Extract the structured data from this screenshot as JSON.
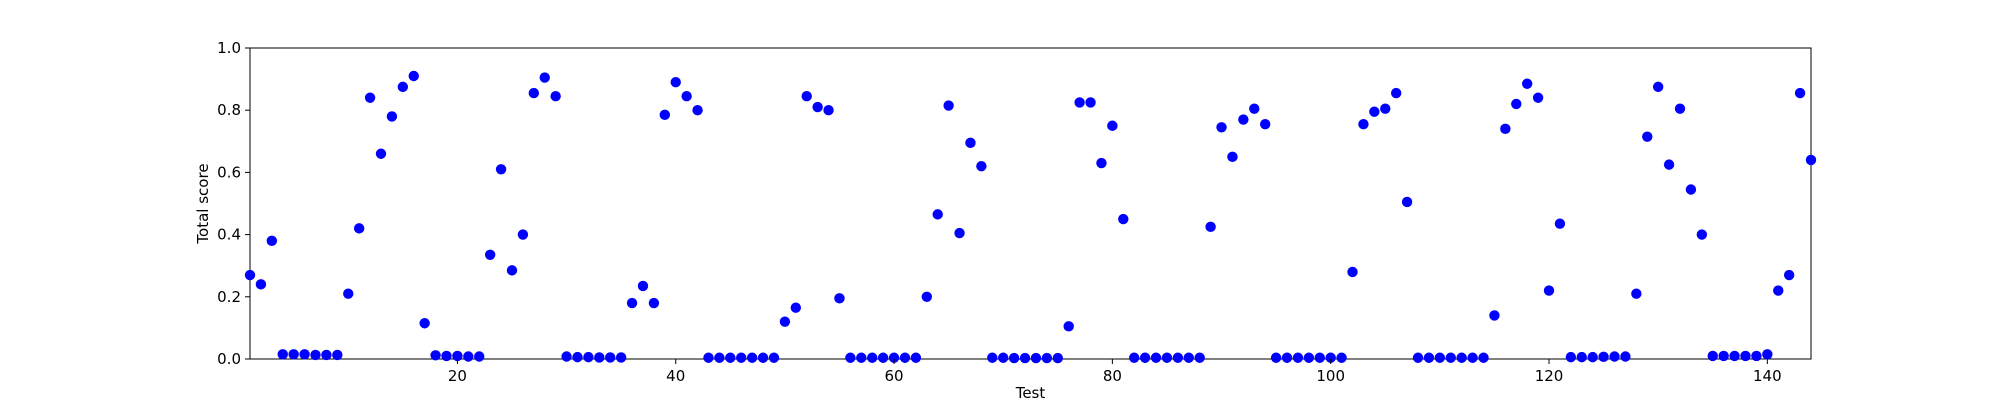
{
  "chart_data": {
    "type": "scatter",
    "title": "",
    "xlabel": "Test",
    "ylabel": "Total score",
    "xlim": [
      1,
      144
    ],
    "ylim": [
      0.0,
      1.0
    ],
    "grid": false,
    "xticks": [
      20,
      40,
      60,
      80,
      100,
      120,
      140
    ],
    "xtick_labels": [
      "20",
      "40",
      "60",
      "80",
      "100",
      "120",
      "140"
    ],
    "yticks": [
      0.0,
      0.2,
      0.4,
      0.6,
      0.8,
      1.0
    ],
    "ytick_labels": [
      "0.0",
      "0.2",
      "0.4",
      "0.6",
      "0.8",
      "1.0"
    ],
    "marker_color": "#0000ff",
    "series": [
      {
        "x": [
          1,
          2,
          3,
          4,
          5,
          6,
          7,
          8,
          9,
          10,
          11,
          12,
          13,
          14,
          15,
          16,
          17,
          18,
          19,
          20,
          21,
          22,
          23,
          24,
          25,
          26,
          27,
          28,
          29,
          30,
          31,
          32,
          33,
          34,
          35,
          36,
          37,
          38,
          39,
          40,
          41,
          42,
          43,
          44,
          45,
          46,
          47,
          48,
          49,
          50,
          51,
          52,
          53,
          54,
          55,
          56,
          57,
          58,
          59,
          60,
          61,
          62,
          63,
          64,
          65,
          66,
          67,
          68,
          69,
          70,
          71,
          72,
          73,
          74,
          75,
          76,
          77,
          78,
          79,
          80,
          81,
          82,
          83,
          84,
          85,
          86,
          87,
          88,
          89,
          90,
          91,
          92,
          93,
          94,
          95,
          96,
          97,
          98,
          99,
          100,
          101,
          102,
          103,
          104,
          105,
          106,
          107,
          108,
          109,
          110,
          111,
          112,
          113,
          114,
          115,
          116,
          117,
          118,
          119,
          120,
          121,
          122,
          123,
          124,
          125,
          126,
          127,
          128,
          129,
          130,
          131,
          132,
          133,
          134,
          135,
          136,
          137,
          138,
          139,
          140,
          141,
          142,
          143,
          144
        ],
        "y": [
          0.27,
          0.24,
          0.38,
          0.015,
          0.015,
          0.015,
          0.013,
          0.013,
          0.013,
          0.21,
          0.42,
          0.84,
          0.66,
          0.78,
          0.875,
          0.91,
          0.115,
          0.012,
          0.01,
          0.01,
          0.008,
          0.008,
          0.335,
          0.61,
          0.285,
          0.4,
          0.855,
          0.905,
          0.845,
          0.008,
          0.006,
          0.006,
          0.005,
          0.005,
          0.005,
          0.18,
          0.235,
          0.18,
          0.785,
          0.89,
          0.845,
          0.8,
          0.004,
          0.004,
          0.004,
          0.004,
          0.004,
          0.004,
          0.004,
          0.12,
          0.165,
          0.845,
          0.81,
          0.8,
          0.195,
          0.004,
          0.004,
          0.004,
          0.004,
          0.004,
          0.004,
          0.004,
          0.2,
          0.465,
          0.815,
          0.405,
          0.695,
          0.62,
          0.004,
          0.004,
          0.003,
          0.003,
          0.003,
          0.003,
          0.003,
          0.105,
          0.825,
          0.825,
          0.63,
          0.75,
          0.45,
          0.004,
          0.004,
          0.004,
          0.004,
          0.004,
          0.004,
          0.004,
          0.425,
          0.745,
          0.65,
          0.77,
          0.805,
          0.755,
          0.004,
          0.004,
          0.004,
          0.004,
          0.004,
          0.004,
          0.004,
          0.28,
          0.755,
          0.795,
          0.805,
          0.855,
          0.505,
          0.004,
          0.004,
          0.004,
          0.004,
          0.004,
          0.004,
          0.004,
          0.14,
          0.74,
          0.82,
          0.885,
          0.84,
          0.22,
          0.435,
          0.006,
          0.006,
          0.006,
          0.007,
          0.008,
          0.008,
          0.21,
          0.715,
          0.875,
          0.625,
          0.805,
          0.545,
          0.4,
          0.01,
          0.01,
          0.01,
          0.01,
          0.01,
          0.015,
          0.22,
          0.27,
          0.855,
          0.64
        ]
      }
    ]
  }
}
